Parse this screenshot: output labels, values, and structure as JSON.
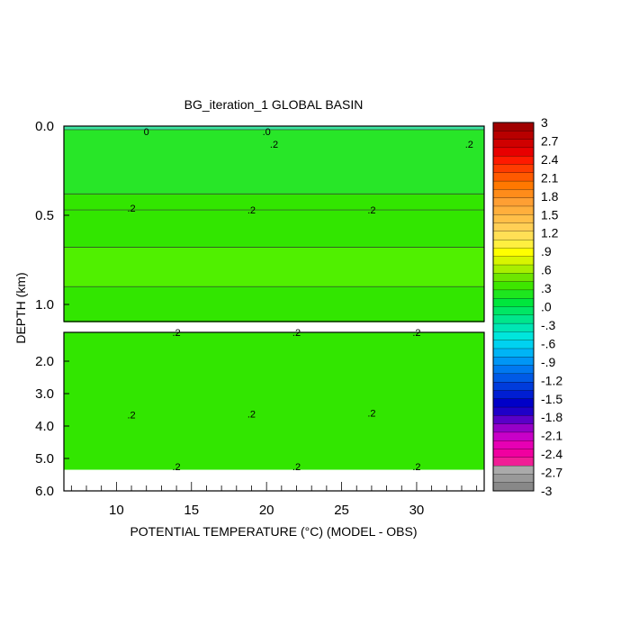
{
  "chart_data": {
    "type": "heatmap",
    "title": "BG_iteration_1 GLOBAL BASIN",
    "xlabel": "POTENTIAL TEMPERATURE (°C) (MODEL - OBS)",
    "ylabel": "DEPTH (km)",
    "x_range": [
      6.5,
      34.5
    ],
    "x_ticks": [
      "10",
      "15",
      "20",
      "25",
      "30"
    ],
    "upper_panel": {
      "y_range": [
        0.0,
        1.1
      ],
      "y_ticks": [
        "0.0",
        "0.5",
        "1.0"
      ],
      "bands": [
        {
          "depth_top": 0.0,
          "depth_bottom": 0.02,
          "value": -0.6
        },
        {
          "depth_top": 0.02,
          "depth_bottom": 0.38,
          "value": 0.15
        },
        {
          "depth_top": 0.38,
          "depth_bottom": 0.47,
          "value": 0.2
        },
        {
          "depth_top": 0.47,
          "depth_bottom": 0.68,
          "value": 0.25
        },
        {
          "depth_top": 0.68,
          "depth_bottom": 0.9,
          "value": 0.35
        },
        {
          "depth_top": 0.9,
          "depth_bottom": 1.1,
          "value": 0.25
        }
      ],
      "contour_labels": [
        {
          "x": 12,
          "depth": 0.03,
          "text": "0"
        },
        {
          "x": 20,
          "depth": 0.03,
          "text": ".0"
        },
        {
          "x": 20.5,
          "depth": 0.1,
          "text": ".2"
        },
        {
          "x": 33.5,
          "depth": 0.1,
          "text": ".2"
        },
        {
          "x": 11,
          "depth": 0.46,
          "text": ".2"
        },
        {
          "x": 19,
          "depth": 0.47,
          "text": ".2"
        },
        {
          "x": 27,
          "depth": 0.47,
          "text": ".2"
        }
      ]
    },
    "lower_panel": {
      "y_range": [
        1.0,
        6.0
      ],
      "y_ticks": [
        "2.0",
        "3.0",
        "4.0",
        "5.0",
        "6.0"
      ],
      "bands": [
        {
          "depth_top": 1.0,
          "depth_bottom": 5.35,
          "value": 0.25
        },
        {
          "depth_top": 5.35,
          "depth_bottom": 6.0,
          "value": null
        }
      ],
      "contour_labels": [
        {
          "x": 14,
          "depth": 1.05,
          "text": ".2"
        },
        {
          "x": 22,
          "depth": 1.05,
          "text": ".2"
        },
        {
          "x": 30,
          "depth": 1.05,
          "text": ".2"
        },
        {
          "x": 11,
          "depth": 3.65,
          "text": ".2"
        },
        {
          "x": 19,
          "depth": 3.62,
          "text": ".2"
        },
        {
          "x": 27,
          "depth": 3.6,
          "text": ".2"
        },
        {
          "x": 14,
          "depth": 5.25,
          "text": ".2"
        },
        {
          "x": 22,
          "depth": 5.25,
          "text": ".2"
        },
        {
          "x": 30,
          "depth": 5.25,
          "text": ".2"
        }
      ]
    },
    "colorbar": {
      "min": -3,
      "max": 3,
      "labels": [
        "3",
        "2.7",
        "2.4",
        "2.1",
        "1.8",
        "1.5",
        "1.2",
        ".9",
        ".6",
        ".3",
        ".0",
        "-.3",
        "-.6",
        "-.9",
        "-1.2",
        "-1.5",
        "-1.8",
        "-2.1",
        "-2.4",
        "-2.7",
        "-3"
      ],
      "colors_top_to_bottom": [
        "#a00000",
        "#b80000",
        "#d00000",
        "#e80000",
        "#ff1a00",
        "#ff3c00",
        "#ff5a00",
        "#ff7800",
        "#ff8c1a",
        "#ff9f33",
        "#ffaf3c",
        "#ffbf48",
        "#ffcf55",
        "#ffdf55",
        "#ffef40",
        "#ffff00",
        "#d8f500",
        "#a8ee00",
        "#6ee600",
        "#3ee600",
        "#1ee61e",
        "#00e63c",
        "#00e665",
        "#00e68c",
        "#00e6b4",
        "#00e6dc",
        "#00d2f0",
        "#00b4f5",
        "#0096f5",
        "#0078f0",
        "#005ae6",
        "#003cdc",
        "#001ed2",
        "#0000c8",
        "#1e00c8",
        "#5a00c8",
        "#9600c8",
        "#c800c8",
        "#e600b4",
        "#f000a0",
        "#f01e96",
        "#aaaaaa",
        "#999999",
        "#888888"
      ]
    }
  }
}
